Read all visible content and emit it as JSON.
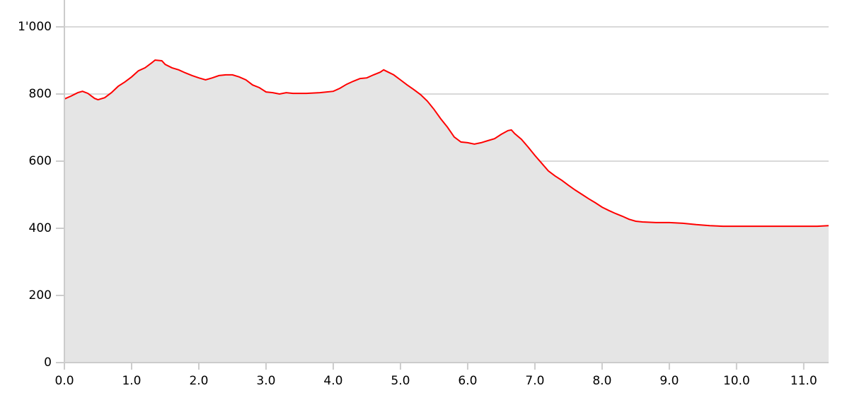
{
  "chart_data": {
    "type": "area",
    "x": [
      0,
      0.1,
      0.2,
      0.27,
      0.35,
      0.45,
      0.5,
      0.6,
      0.7,
      0.8,
      0.9,
      1.0,
      1.1,
      1.2,
      1.3,
      1.35,
      1.45,
      1.5,
      1.6,
      1.7,
      1.8,
      1.9,
      2.0,
      2.1,
      2.2,
      2.3,
      2.4,
      2.5,
      2.6,
      2.7,
      2.8,
      2.9,
      3.0,
      3.1,
      3.2,
      3.3,
      3.4,
      3.6,
      3.8,
      4.0,
      4.1,
      4.2,
      4.3,
      4.4,
      4.5,
      4.6,
      4.7,
      4.75,
      4.8,
      4.9,
      5.0,
      5.1,
      5.2,
      5.3,
      5.4,
      5.5,
      5.6,
      5.7,
      5.8,
      5.9,
      6.0,
      6.1,
      6.2,
      6.3,
      6.4,
      6.5,
      6.6,
      6.65,
      6.7,
      6.8,
      6.9,
      7.0,
      7.1,
      7.2,
      7.3,
      7.4,
      7.5,
      7.6,
      7.7,
      7.8,
      7.9,
      8.0,
      8.1,
      8.2,
      8.3,
      8.4,
      8.5,
      8.6,
      8.8,
      9.0,
      9.2,
      9.4,
      9.6,
      9.8,
      10.0,
      10.2,
      10.4,
      10.6,
      10.8,
      11.0,
      11.2,
      11.37
    ],
    "series": [
      {
        "color": "#ff0000",
        "fill": "#e5e5e5",
        "values": [
          785,
          794,
          804,
          808,
          802,
          787,
          783,
          789,
          804,
          823,
          836,
          851,
          869,
          878,
          893,
          901,
          899,
          888,
          878,
          872,
          863,
          855,
          848,
          842,
          848,
          855,
          857,
          857,
          851,
          842,
          827,
          819,
          806,
          804,
          800,
          804,
          802,
          802,
          804,
          808,
          817,
          829,
          838,
          846,
          848,
          857,
          865,
          872,
          867,
          857,
          842,
          827,
          813,
          798,
          779,
          754,
          726,
          701,
          672,
          657,
          655,
          651,
          655,
          661,
          667,
          680,
          691,
          693,
          682,
          665,
          642,
          617,
          594,
          571,
          556,
          543,
          528,
          514,
          501,
          488,
          476,
          463,
          453,
          444,
          436,
          427,
          421,
          419,
          417,
          417,
          415,
          411,
          408,
          406,
          406,
          406,
          406,
          406,
          406,
          406,
          406,
          408
        ]
      }
    ],
    "xlim": [
      0,
      11.37
    ],
    "ylim": [
      0,
      1080
    ],
    "xticks": [
      {
        "value": 0,
        "label": "0.0"
      },
      {
        "value": 1,
        "label": "1.0"
      },
      {
        "value": 2,
        "label": "2.0"
      },
      {
        "value": 3,
        "label": "3.0"
      },
      {
        "value": 4,
        "label": "4.0"
      },
      {
        "value": 5,
        "label": "5.0"
      },
      {
        "value": 6,
        "label": "6.0"
      },
      {
        "value": 7,
        "label": "7.0"
      },
      {
        "value": 8,
        "label": "8.0"
      },
      {
        "value": 9,
        "label": "9.0"
      },
      {
        "value": 10,
        "label": "10.0"
      },
      {
        "value": 11,
        "label": "11.0"
      }
    ],
    "yticks": [
      0,
      200,
      400,
      600,
      800,
      {
        "value": 1000,
        "label": "1'000"
      }
    ],
    "grid": true
  }
}
